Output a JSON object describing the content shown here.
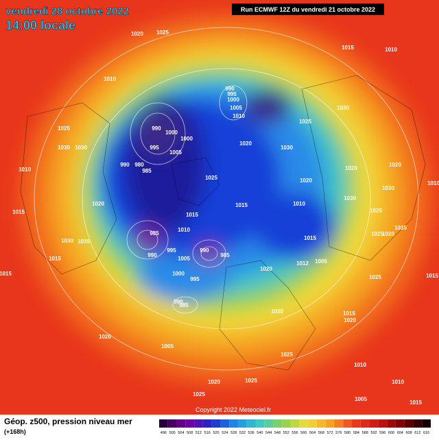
{
  "header": {
    "date": "vendredi 28 octobre 2022",
    "time": "14:00 locale",
    "run": "Run ECMWF 12Z du vendredi 21 octobre 2022"
  },
  "pressure_labels": [
    "1020",
    "1025",
    "1015",
    "1010",
    "1010",
    "990",
    "995",
    "1000",
    "1005",
    "1010",
    "1030",
    "1025",
    "990",
    "1000",
    "1025",
    "1030",
    "1030",
    "1000",
    "995",
    "1005",
    "990",
    "980",
    "985",
    "1020",
    "1030",
    "1010",
    "1025",
    "1020",
    "1020",
    "1020",
    "1030",
    "1030",
    "1010",
    "1015",
    "1010",
    "1025",
    "1020",
    "1015",
    "1015",
    "1010",
    "985",
    "1015",
    "1025",
    "1020",
    "1035",
    "1030",
    "1035",
    "990",
    "985",
    "995",
    "990",
    "1005",
    "1012",
    "1005",
    "1020",
    "1015",
    "1000",
    "995",
    "1015",
    "1015",
    "1025",
    "990",
    "985",
    "1030",
    "1015",
    "1020",
    "1020",
    "1005",
    "1025",
    "1010",
    "1020",
    "1025",
    "1010",
    "1025",
    "1005",
    "1015"
  ],
  "copyright": "Copyright 2022 Meteociel.fr",
  "footer": {
    "title": "Géop. z500, pression niveau mer",
    "range": "(+168h)"
  },
  "scale": {
    "labels": [
      "496",
      "500",
      "504",
      "508",
      "512",
      "516",
      "520",
      "524",
      "528",
      "532",
      "536",
      "540",
      "544",
      "548",
      "552",
      "556",
      "560",
      "564",
      "568",
      "572",
      "576",
      "580",
      "584",
      "588",
      "592",
      "596",
      "600",
      "604",
      "608",
      "612",
      "616"
    ]
  }
}
